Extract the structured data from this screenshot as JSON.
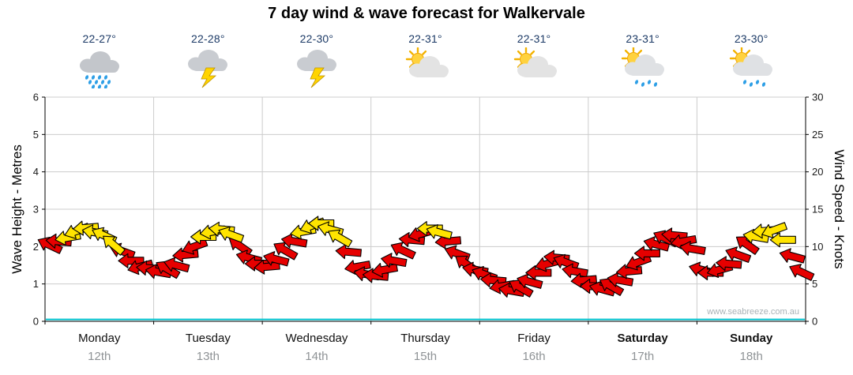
{
  "title": "7 day wind & wave forecast for Walkervale",
  "watermark": "www.seabreeze.com.au",
  "y_left": {
    "label": "Wave Height - Metres",
    "ticks": [
      0,
      1,
      2,
      3,
      4,
      5,
      6
    ]
  },
  "y_right": {
    "label": "Wind Speed - Knots",
    "ticks": [
      0,
      5,
      10,
      15,
      20,
      25,
      30
    ]
  },
  "days": [
    {
      "name": "Monday",
      "date": "12th",
      "temp": "22-27°",
      "icon": "rain",
      "bold": false
    },
    {
      "name": "Tuesday",
      "date": "13th",
      "temp": "22-28°",
      "icon": "storm",
      "bold": false
    },
    {
      "name": "Wednesday",
      "date": "14th",
      "temp": "22-30°",
      "icon": "storm",
      "bold": false
    },
    {
      "name": "Thursday",
      "date": "15th",
      "temp": "22-31°",
      "icon": "sun-cloud",
      "bold": false
    },
    {
      "name": "Friday",
      "date": "16th",
      "temp": "22-31°",
      "icon": "sun-cloud",
      "bold": false
    },
    {
      "name": "Saturday",
      "date": "17th",
      "temp": "23-31°",
      "icon": "sun-cloud-rain",
      "bold": true
    },
    {
      "name": "Sunday",
      "date": "18th",
      "temp": "23-30°",
      "icon": "sun-cloud-rain",
      "bold": true
    }
  ],
  "chart_data": {
    "type": "wind-arrow-forecast",
    "title": "7 day wind & wave forecast for Walkervale",
    "x_categories": [
      "Monday 12th",
      "Tuesday 13th",
      "Wednesday 14th",
      "Thursday 15th",
      "Friday 16th",
      "Saturday 17th",
      "Sunday 18th"
    ],
    "points_per_day": 12,
    "ylim_left_metres": [
      0,
      6
    ],
    "ylim_right_knots": [
      0,
      30
    ],
    "grid": true,
    "wave_height_m": 0.05,
    "wind_knots": [
      10.2,
      10.7,
      11.2,
      12.1,
      12.5,
      11.9,
      11.5,
      10.3,
      9.4,
      8.1,
      7.3,
      7.1,
      6.6,
      7.0,
      7.5,
      8.9,
      10.0,
      11.3,
      12.0,
      12.3,
      11.6,
      10.1,
      8.5,
      7.7,
      7.3,
      8.3,
      9.5,
      10.7,
      12.0,
      12.8,
      13.1,
      12.3,
      11.2,
      9.3,
      7.3,
      6.3,
      6.1,
      6.9,
      8.1,
      9.5,
      10.9,
      11.7,
      12.4,
      11.9,
      10.7,
      9.1,
      7.7,
      6.9,
      6.3,
      5.5,
      4.7,
      4.1,
      4.5,
      5.3,
      6.5,
      7.7,
      8.5,
      7.9,
      6.7,
      5.5,
      4.7,
      4.3,
      4.7,
      5.5,
      6.7,
      7.9,
      9.1,
      10.3,
      11.1,
      11.5,
      10.7,
      9.7,
      6.9,
      6.5,
      6.9,
      7.7,
      8.9,
      10.3,
      11.3,
      12.1,
      12.2,
      10.9,
      8.7,
      6.6
    ],
    "wind_dir_deg": [
      205,
      185,
      170,
      160,
      175,
      190,
      205,
      220,
      200,
      180,
      165,
      185,
      190,
      210,
      195,
      175,
      160,
      180,
      170,
      185,
      200,
      215,
      195,
      180,
      175,
      195,
      210,
      190,
      170,
      160,
      180,
      195,
      210,
      185,
      170,
      190,
      185,
      170,
      190,
      205,
      185,
      165,
      180,
      195,
      175,
      200,
      215,
      190,
      200,
      185,
      170,
      190,
      210,
      195,
      180,
      165,
      185,
      200,
      190,
      175,
      180,
      195,
      210,
      190,
      175,
      160,
      180,
      195,
      205,
      185,
      170,
      190,
      195,
      180,
      165,
      185,
      200,
      215,
      190,
      175,
      160,
      180,
      195,
      205
    ],
    "arrow_is_yellow": [
      0,
      0,
      1,
      1,
      1,
      1,
      1,
      1,
      0,
      0,
      0,
      0,
      0,
      0,
      0,
      0,
      0,
      1,
      1,
      1,
      1,
      0,
      0,
      0,
      0,
      0,
      0,
      0,
      1,
      1,
      1,
      1,
      1,
      0,
      0,
      0,
      0,
      0,
      0,
      0,
      0,
      0,
      1,
      1,
      0,
      0,
      0,
      0,
      0,
      0,
      0,
      0,
      0,
      0,
      0,
      0,
      0,
      0,
      0,
      0,
      0,
      0,
      0,
      0,
      0,
      0,
      0,
      0,
      0,
      0,
      0,
      0,
      0,
      0,
      0,
      0,
      0,
      0,
      1,
      1,
      1,
      1,
      0,
      0
    ],
    "colors": {
      "arrow_red": "#e60000",
      "arrow_yellow": "#ffe400",
      "arrow_outline": "#000000",
      "wave_line": "#00c3cf",
      "gridline": "#cccccc",
      "temp_text": "#1c3a66"
    }
  }
}
